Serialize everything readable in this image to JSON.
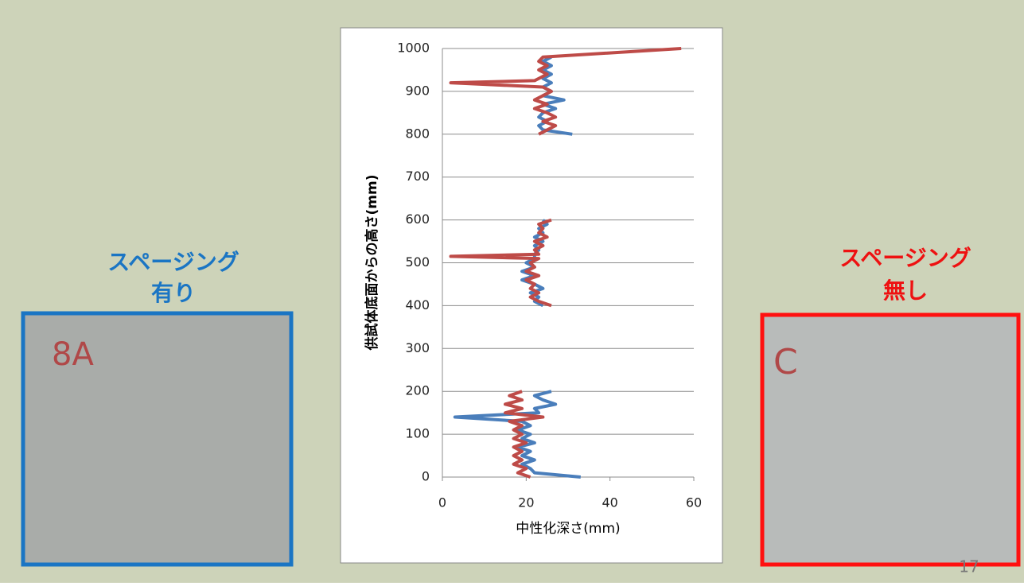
{
  "left_label": {
    "line1": "スページング",
    "line2": "有り",
    "photo_text": "8A"
  },
  "right_label": {
    "line1": "スページング",
    "line2": "無し",
    "photo_text": "C"
  },
  "page_number": "17",
  "chart_data": {
    "type": "line",
    "xlabel": "中性化深さ(mm)",
    "ylabel": "供試体底面からの高さ(mm)",
    "xlim": [
      0,
      60
    ],
    "xticks": [
      0,
      20,
      40,
      60
    ],
    "ylim": [
      0,
      1000
    ],
    "yticks": [
      0,
      100,
      200,
      300,
      400,
      500,
      600,
      700,
      800,
      900,
      1000
    ],
    "grid": true,
    "series": [
      {
        "color": "#4a7ebb",
        "x": [
          33,
          22,
          21,
          19,
          22,
          19,
          21,
          18,
          22,
          19,
          21,
          18,
          21,
          19,
          3,
          23,
          22,
          27,
          24,
          22,
          26,
          null,
          24,
          22,
          23,
          21,
          24,
          22,
          19,
          22,
          19,
          22,
          20,
          22,
          22,
          23,
          22,
          24,
          22,
          24,
          23,
          25,
          24,
          null,
          31,
          24,
          23,
          25,
          23,
          24,
          27,
          24,
          29,
          24,
          26,
          24,
          26,
          24,
          26,
          24,
          26,
          24,
          26
        ],
        "values": [
          0,
          10,
          20,
          30,
          40,
          50,
          60,
          70,
          80,
          90,
          100,
          110,
          120,
          130,
          140,
          150,
          160,
          170,
          180,
          190,
          200,
          null,
          400,
          410,
          420,
          430,
          440,
          450,
          460,
          470,
          480,
          490,
          500,
          510,
          520,
          530,
          540,
          550,
          560,
          570,
          580,
          590,
          600,
          null,
          800,
          810,
          820,
          830,
          840,
          850,
          860,
          870,
          880,
          890,
          900,
          910,
          920,
          930,
          940,
          950,
          960,
          970,
          980
        ]
      },
      {
        "color": "#be4b48",
        "x": [
          21,
          18,
          20,
          17,
          19,
          17,
          19,
          17,
          20,
          17,
          19,
          17,
          19,
          16,
          24,
          15,
          19,
          15,
          19,
          16,
          19,
          null,
          26,
          23,
          21,
          23,
          21,
          22,
          20,
          23,
          20,
          22,
          21,
          23,
          2,
          23,
          22,
          24,
          22,
          25,
          23,
          24,
          23,
          26,
          null,
          23,
          25,
          27,
          24,
          27,
          25,
          22,
          25,
          22,
          24,
          26,
          24,
          2,
          22,
          23,
          25,
          23,
          25,
          23,
          24,
          57
        ],
        "values": [
          0,
          10,
          20,
          30,
          40,
          50,
          60,
          70,
          80,
          90,
          100,
          110,
          120,
          130,
          140,
          150,
          160,
          170,
          180,
          190,
          200,
          null,
          400,
          410,
          420,
          430,
          440,
          450,
          460,
          470,
          480,
          490,
          500,
          510,
          515,
          520,
          530,
          540,
          550,
          560,
          570,
          580,
          590,
          600,
          null,
          800,
          810,
          820,
          830,
          840,
          850,
          860,
          870,
          880,
          890,
          900,
          910,
          920,
          925,
          930,
          940,
          950,
          960,
          970,
          980,
          1000
        ]
      }
    ]
  }
}
